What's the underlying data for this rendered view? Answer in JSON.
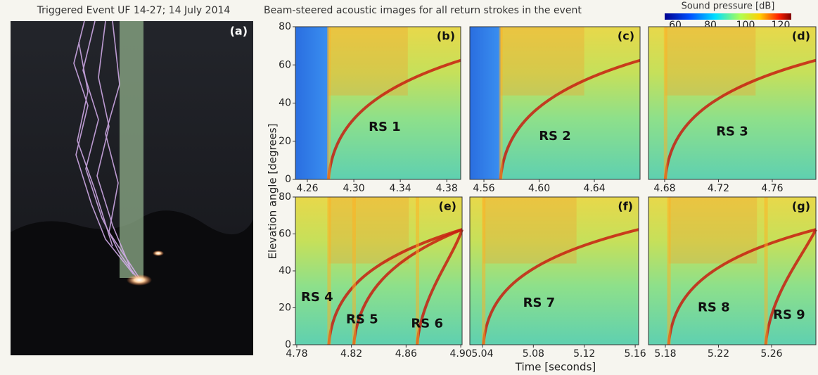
{
  "figure": {
    "title_left": "Triggered Event UF 14-27; 14 July 2014",
    "title_right": "Beam-steered acoustic images for all return strokes in the event",
    "photo_label": "(a)",
    "colorbar": {
      "label": "Sound pressure [dB]",
      "lim": [
        54,
        126
      ],
      "ticks": [
        60,
        80,
        100,
        120
      ]
    },
    "y_label": "Elevation angle [degrees]",
    "x_label": "Time [seconds]",
    "ylim": [
      0,
      80
    ],
    "yticks": [
      0,
      20,
      40,
      60,
      80
    ],
    "panels": [
      {
        "label": "(b)",
        "xlim": [
          4.2497,
          4.392
        ],
        "xticks": [
          4.26,
          {
            "value": 4.3,
            "label": "4.30"
          },
          4.34,
          4.38
        ],
        "strokes": [
          "RS 1"
        ]
      },
      {
        "label": "(c)",
        "xlim": [
          4.5498,
          4.6731
        ],
        "xticks": [
          4.56,
          {
            "value": 4.6,
            "label": "4.60"
          },
          4.64
        ],
        "strokes": [
          "RS 2"
        ]
      },
      {
        "label": "(d)",
        "xlim": [
          4.668,
          4.7924
        ],
        "xticks": [
          4.68,
          4.72,
          4.76
        ],
        "strokes": [
          "RS 3"
        ]
      },
      {
        "label": "(e)",
        "xlim": [
          4.779,
          4.901
        ],
        "xticks": [
          4.78,
          4.82,
          4.86,
          {
            "value": 4.9,
            "label": "4.90"
          }
        ],
        "strokes": [
          "RS 4",
          "RS 5",
          "RS 6"
        ]
      },
      {
        "label": "(f)",
        "xlim": [
          5.0301,
          5.1627
        ],
        "xticks": [
          5.04,
          5.08,
          5.12,
          5.16
        ],
        "strokes": [
          "RS 7"
        ]
      },
      {
        "label": "(g)",
        "xlim": [
          5.1673,
          5.2934
        ],
        "xticks": [
          5.18,
          5.22,
          5.26
        ],
        "strokes": [
          "RS 8",
          "RS 9"
        ]
      }
    ]
  }
}
